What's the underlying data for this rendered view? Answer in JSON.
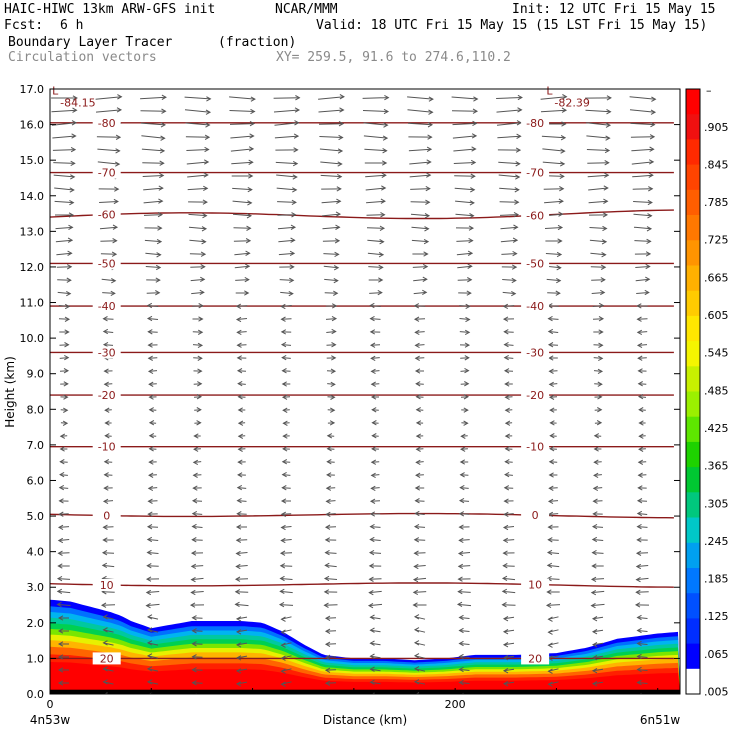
{
  "header": {
    "model": "HAIC-HIWC 13km ARW-GFS init",
    "org": "NCAR/MMM",
    "init": "Init: 12 UTC Fri 15 May 15",
    "fcst_label": "Fcst:",
    "fcst_value": "6 h",
    "valid": "Valid: 18 UTC Fri 15 May 15 (15 LST Fri 15 May 15)",
    "field": "Boundary Layer Tracer",
    "field_units": "(fraction)",
    "vectors": "Circulation vectors",
    "xy": "XY= 259.5, 91.6 to 274.6,110.2"
  },
  "chart_data": {
    "type": "heatmap",
    "xlabel": "Distance (km)",
    "ylabel": "Height (km)",
    "x_range": [
      0,
      311
    ],
    "ylim": [
      0,
      17
    ],
    "x_ticks": [
      {
        "value": 0,
        "label": "0"
      },
      {
        "value": 200,
        "label": "200"
      }
    ],
    "x_end_labels": {
      "left": "4n53w",
      "right": "6n51w"
    },
    "y_ticks": [
      "0.0",
      "1.0",
      "2.0",
      "3.0",
      "4.0",
      "5.0",
      "6.0",
      "7.0",
      "8.0",
      "9.0",
      "10.0",
      "11.0",
      "12.0",
      "13.0",
      "14.0",
      "15.0",
      "16.0",
      "17.0"
    ],
    "tracer_top_km": [
      [
        0,
        2.65
      ],
      [
        10,
        2.6
      ],
      [
        20,
        2.45
      ],
      [
        30,
        2.3
      ],
      [
        35,
        2.2
      ],
      [
        40,
        2.05
      ],
      [
        50,
        1.85
      ],
      [
        60,
        1.95
      ],
      [
        70,
        2.05
      ],
      [
        80,
        2.05
      ],
      [
        95,
        2.05
      ],
      [
        105,
        2.0
      ],
      [
        115,
        1.75
      ],
      [
        125,
        1.4
      ],
      [
        135,
        1.1
      ],
      [
        150,
        1.0
      ],
      [
        165,
        1.0
      ],
      [
        180,
        0.95
      ],
      [
        195,
        1.0
      ],
      [
        210,
        1.1
      ],
      [
        230,
        1.1
      ],
      [
        250,
        1.15
      ],
      [
        265,
        1.3
      ],
      [
        280,
        1.55
      ],
      [
        300,
        1.7
      ],
      [
        311,
        1.75
      ]
    ],
    "contours": [
      {
        "label": "-80",
        "height": 16.05,
        "slope": 0.0
      },
      {
        "label": "-70",
        "height": 14.65,
        "slope": 0.0
      },
      {
        "label": "-60",
        "height": 13.4,
        "slope": 0.1
      },
      {
        "label": "-50",
        "height": 12.1,
        "slope": 0.0
      },
      {
        "label": "-40",
        "height": 10.9,
        "slope": 0.0
      },
      {
        "label": "-30",
        "height": 9.6,
        "slope": 0.0
      },
      {
        "label": "-20",
        "height": 8.4,
        "slope": 0.0
      },
      {
        "label": "-10",
        "height": 6.95,
        "slope": 0.0
      },
      {
        "label": "0",
        "height": 5.05,
        "slope": -0.05
      },
      {
        "label": "10",
        "height": 3.1,
        "slope": -0.05
      },
      {
        "label": "20",
        "height": 1.0,
        "slope": 0.0
      }
    ],
    "extrema": [
      {
        "symbol": "L",
        "value": "-84.15",
        "x": 6,
        "y": 16.85
      },
      {
        "symbol": "L",
        "value": "-82.39",
        "x": 250,
        "y": 16.85
      }
    ],
    "colorbar": {
      "top_label": "–",
      "labels": [
        ".905",
        ".845",
        ".785",
        ".725",
        ".665",
        ".605",
        ".545",
        ".485",
        ".425",
        ".365",
        ".305",
        ".245",
        ".185",
        ".125",
        ".065",
        ".005"
      ],
      "colors": [
        "#ff0000",
        "#f01010",
        "#ff2a00",
        "#ff4400",
        "#ff5e00",
        "#ff7800",
        "#ff9400",
        "#ffb000",
        "#ffcb00",
        "#ffe600",
        "#f5f500",
        "#c8f000",
        "#9bf000",
        "#5ee600",
        "#1ed200",
        "#00c832",
        "#00c87d",
        "#00c8c8",
        "#00a0f0",
        "#0078ff",
        "#0050ff",
        "#002eff",
        "#0000ff",
        "#ffffff"
      ]
    }
  }
}
